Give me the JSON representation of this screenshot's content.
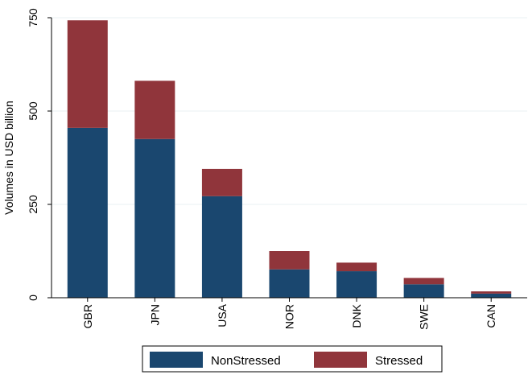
{
  "chart_data": {
    "type": "bar",
    "stacked": true,
    "categories": [
      "GBR",
      "JPN",
      "USA",
      "NOR",
      "DNK",
      "SWE",
      "CAN"
    ],
    "series": [
      {
        "name": "NonStressed",
        "color": "#1a476f",
        "values": [
          455,
          425,
          272,
          76,
          71,
          36,
          11
        ]
      },
      {
        "name": "Stressed",
        "color": "#90353b",
        "values": [
          288,
          156,
          73,
          49,
          23,
          17,
          6
        ]
      }
    ],
    "title": "",
    "xlabel": "",
    "ylabel": "Volumes in USD billion",
    "ylim": [
      0,
      750
    ],
    "yticks": [
      0,
      250,
      500,
      750
    ],
    "grid": "horizontal",
    "legend_position": "bottom"
  }
}
